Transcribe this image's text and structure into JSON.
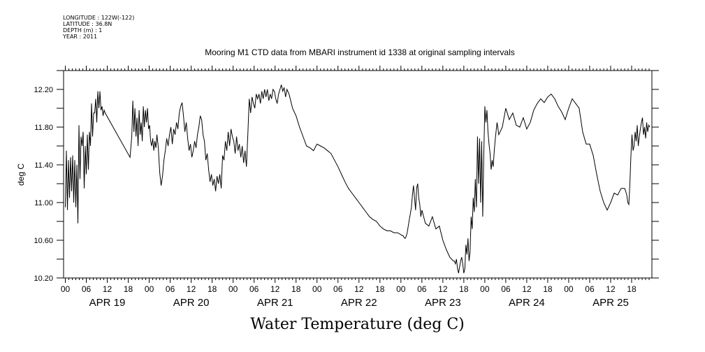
{
  "header": {
    "meta_lines": [
      "LONGITUDE : 122W(-122)",
      "LATITUDE : 36.8N",
      "DEPTH (m) : 1",
      "YEAR : 2011"
    ]
  },
  "chart_data": {
    "type": "line",
    "title": "Mooring M1 CTD data from MBARI instrument id 1338 at original sampling intervals",
    "bottom_title": "Water Temperature (deg C)",
    "ylabel": "deg C",
    "xlabel": "",
    "ylim": [
      10.2,
      12.4
    ],
    "yticks": [
      10.2,
      10.6,
      11.0,
      11.4,
      11.8,
      12.2
    ],
    "ytick_labels": [
      "10.20",
      "10.60",
      "11.00",
      "11.40",
      "11.80",
      "12.20"
    ],
    "xlim_hours": [
      -0.5,
      167.8
    ],
    "hour_tick_labels": [
      "00",
      "06",
      "12",
      "18"
    ],
    "day_labels": [
      "APR 19",
      "APR 20",
      "APR 21",
      "APR 22",
      "APR 23",
      "APR 24",
      "APR 25"
    ],
    "series": [
      {
        "x": [
          0,
          0.3,
          0.6,
          0.9,
          1.2,
          1.5,
          1.8,
          2.1,
          2.4,
          2.7,
          3.0,
          3.3,
          3.6,
          3.9,
          4.2,
          4.5,
          4.8,
          5.1,
          5.4,
          5.7,
          6.0,
          6.3,
          6.6,
          6.9,
          7.2,
          7.5,
          7.8,
          8.1,
          8.4,
          8.7,
          9.0,
          9.3,
          9.6,
          9.9,
          10.2,
          10.5,
          10.8,
          11.1,
          11.4,
          18.5,
          19.0,
          19.3,
          19.6,
          19.9,
          20.2,
          20.5,
          20.8,
          21.1,
          21.4,
          21.7,
          22.0,
          22.3,
          22.6,
          22.9,
          23.2,
          23.5,
          23.8,
          24.1,
          24.4,
          24.7,
          25.0,
          25.3,
          25.6,
          25.9,
          26.2,
          26.6,
          27.0,
          27.4,
          27.8,
          28.2,
          28.6,
          29.0,
          29.4,
          29.8,
          30.2,
          30.6,
          31.0,
          31.4,
          31.8,
          32.2,
          32.6,
          33.0,
          33.4,
          33.8,
          34.2,
          34.6,
          35.0,
          35.4,
          35.8,
          36.2,
          36.6,
          37.0,
          37.4,
          37.8,
          38.2,
          38.6,
          39.0,
          39.4,
          39.8,
          40.2,
          40.6,
          41.0,
          41.4,
          41.8,
          42.2,
          42.6,
          43.0,
          43.4,
          43.8,
          44.2,
          44.6,
          45.0,
          45.4,
          45.8,
          46.2,
          46.6,
          47.0,
          47.4,
          47.8,
          48.2,
          48.6,
          49.0,
          49.4,
          49.8,
          50.2,
          50.6,
          51.0,
          51.4,
          51.8,
          52.2,
          52.6,
          53.0,
          53.4,
          53.8,
          54.2,
          54.6,
          55.0,
          55.4,
          55.8,
          56.2,
          56.6,
          57.0,
          57.4,
          57.8,
          58.2,
          58.6,
          59.0,
          59.4,
          59.8,
          60.2,
          60.6,
          61.0,
          61.4,
          61.8,
          62.2,
          62.6,
          63.0,
          63.4,
          64,
          65,
          66,
          67,
          68,
          69,
          70,
          71,
          72,
          73,
          74,
          75,
          76,
          77,
          78,
          79,
          80,
          81,
          82,
          83,
          84,
          85,
          86,
          87,
          88,
          89,
          90,
          91,
          92,
          93,
          94,
          95,
          96,
          96.3,
          96.6,
          96.9,
          97.2,
          97.5,
          97.8,
          98.1,
          98.4,
          98.7,
          99.0,
          99.3,
          99.6,
          99.9,
          100.2,
          100.5,
          100.8,
          101.1,
          101.4,
          101.7,
          102,
          103,
          104,
          105,
          106,
          107,
          108,
          109,
          110,
          111,
          111.3,
          111.6,
          111.9,
          112.2,
          112.5,
          112.8,
          113.1,
          113.4,
          113.7,
          114.0,
          114.3,
          114.6,
          114.9,
          115.2,
          115.5,
          115.8,
          116.1,
          116.4,
          116.7,
          117.0,
          117.3,
          117.6,
          117.9,
          118.2,
          118.5,
          118.8,
          119.1,
          119.4,
          119.7,
          120.0,
          120.3,
          120.6,
          120.9,
          121.2,
          121.5,
          121.8,
          122.1,
          122.4,
          122.7,
          123.0,
          123.5,
          124,
          125,
          126,
          127,
          128,
          129,
          130,
          131,
          132,
          133,
          134,
          135,
          136,
          137,
          138,
          139,
          140,
          141,
          142,
          143,
          144,
          145,
          146,
          147,
          148,
          149,
          150,
          151,
          152,
          153,
          154,
          155,
          156,
          157,
          158,
          159,
          160,
          160.3,
          160.6,
          160.9,
          161.2,
          161.5,
          161.8,
          162.1,
          162.4,
          162.7,
          163.0,
          163.3,
          163.6,
          163.9,
          164.2,
          164.5,
          164.8,
          165.1,
          165.4,
          165.7,
          166.0,
          166.3,
          166.6,
          166.9,
          167.2
        ],
        "y": [
          10.95,
          11.55,
          10.92,
          11.45,
          11.05,
          11.48,
          11.12,
          11.5,
          11.0,
          11.45,
          10.95,
          11.4,
          10.78,
          11.82,
          11.25,
          11.7,
          11.6,
          11.75,
          11.15,
          11.6,
          11.3,
          11.72,
          11.35,
          11.75,
          11.6,
          12.05,
          11.7,
          11.95,
          11.95,
          12.1,
          11.85,
          12.18,
          12.0,
          12.18,
          11.98,
          12.02,
          11.92,
          11.98,
          11.95,
          11.48,
          11.7,
          12.08,
          11.75,
          12.0,
          11.7,
          11.9,
          11.6,
          11.98,
          11.72,
          11.85,
          11.65,
          12.02,
          11.8,
          11.98,
          11.85,
          12.0,
          11.78,
          11.82,
          11.65,
          11.6,
          11.68,
          11.55,
          11.65,
          11.58,
          11.72,
          11.58,
          11.32,
          11.18,
          11.28,
          11.45,
          11.55,
          11.68,
          11.6,
          11.72,
          11.8,
          11.62,
          11.78,
          11.72,
          11.85,
          11.78,
          11.95,
          12.02,
          12.06,
          11.92,
          11.75,
          11.85,
          11.68,
          11.55,
          11.62,
          11.48,
          11.55,
          11.65,
          11.58,
          11.72,
          11.8,
          11.92,
          11.88,
          11.72,
          11.65,
          11.45,
          11.52,
          11.35,
          11.22,
          11.3,
          11.18,
          11.25,
          11.12,
          11.28,
          11.2,
          11.3,
          11.15,
          11.5,
          11.45,
          11.65,
          11.55,
          11.75,
          11.6,
          11.78,
          11.7,
          11.65,
          11.52,
          11.7,
          11.55,
          11.62,
          11.48,
          11.6,
          11.42,
          11.55,
          11.38,
          11.72,
          12.1,
          11.95,
          12.12,
          12.05,
          12.0,
          12.15,
          12.1,
          12.15,
          12.05,
          12.18,
          12.1,
          12.2,
          12.12,
          12.2,
          12.08,
          12.15,
          12.1,
          12.2,
          12.18,
          12.1,
          12.05,
          12.15,
          12.2,
          12.25,
          12.18,
          12.22,
          12.12,
          12.2,
          12.15,
          12.0,
          11.92,
          11.8,
          11.7,
          11.6,
          11.58,
          11.55,
          11.62,
          11.6,
          11.58,
          11.55,
          11.52,
          11.45,
          11.38,
          11.3,
          11.22,
          11.15,
          11.1,
          11.05,
          11.0,
          10.95,
          10.9,
          10.85,
          10.82,
          10.8,
          10.75,
          10.72,
          10.7,
          10.7,
          10.68,
          10.68,
          10.66,
          10.65,
          10.65,
          10.63,
          10.62,
          10.64,
          10.68,
          10.75,
          10.82,
          10.88,
          10.95,
          11.08,
          11.18,
          11.05,
          10.92,
          11.15,
          11.2,
          11.05,
          10.98,
          10.85,
          10.92,
          10.78,
          10.75,
          10.85,
          10.72,
          10.75,
          10.6,
          10.5,
          10.42,
          10.38,
          10.38,
          10.35,
          10.4,
          10.3,
          10.25,
          10.32,
          10.38,
          10.42,
          10.35,
          10.25,
          10.3,
          10.55,
          10.45,
          10.62,
          10.38,
          10.48,
          10.85,
          10.72,
          11.05,
          10.9,
          11.25,
          10.95,
          11.7,
          11.2,
          11.68,
          11.0,
          11.65,
          10.85,
          11.5,
          12.02,
          11.85,
          11.98,
          11.75,
          11.62,
          11.52,
          11.35,
          11.45,
          11.38,
          11.55,
          11.68,
          11.85,
          11.72,
          11.8,
          12.0,
          11.88,
          11.95,
          11.82,
          11.8,
          11.9,
          11.78,
          11.85,
          11.98,
          12.05,
          12.1,
          12.06,
          12.12,
          12.15,
          12.1,
          12.02,
          11.96,
          11.88,
          12.0,
          12.1,
          12.05,
          12.0,
          11.75,
          11.62,
          11.62,
          11.5,
          11.3,
          11.12,
          11.0,
          10.92,
          11.0,
          11.1,
          11.08,
          11.15,
          11.15,
          11.12,
          11.08,
          11.0,
          10.98,
          11.2,
          11.5,
          11.72,
          11.55,
          11.6,
          11.75,
          11.65,
          11.82,
          11.6,
          11.7,
          11.78,
          11.85,
          11.9,
          11.72,
          11.8,
          11.68,
          11.85,
          11.75,
          11.82,
          11.8
        ]
      }
    ],
    "grid": false,
    "legend": "none"
  }
}
